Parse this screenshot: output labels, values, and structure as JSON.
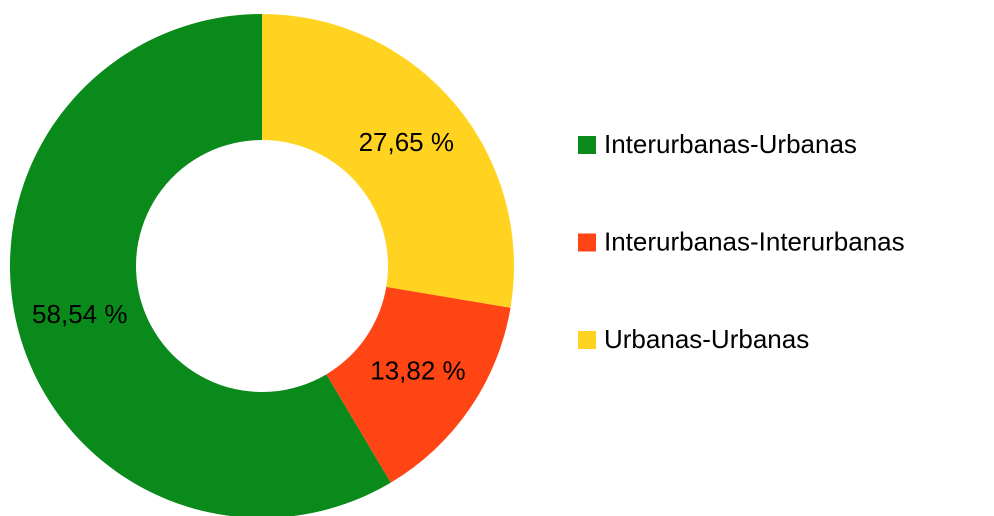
{
  "chart_data": {
    "type": "donut",
    "categories": [
      "Interurbanas-Urbanas",
      "Interurbanas-Interurbanas",
      "Urbanas-Urbanas"
    ],
    "values": [
      58.54,
      13.82,
      27.65
    ],
    "value_labels": [
      "58,54 %",
      "13,82 %",
      "27,65 %"
    ],
    "colors": [
      "#0a8a1a",
      "#ff4514",
      "#ffd320"
    ],
    "legend": "right"
  }
}
